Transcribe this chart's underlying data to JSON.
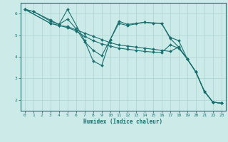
{
  "xlabel": "Humidex (Indice chaleur)",
  "bg_color": "#cceae8",
  "grid_color": "#aad4d2",
  "line_color": "#1a7070",
  "xlim": [
    -0.5,
    23.5
  ],
  "ylim": [
    1.5,
    6.5
  ],
  "yticks": [
    2,
    3,
    4,
    5,
    6
  ],
  "xticks": [
    0,
    1,
    2,
    3,
    4,
    5,
    6,
    7,
    8,
    9,
    10,
    11,
    12,
    13,
    14,
    15,
    16,
    17,
    18,
    19,
    20,
    21,
    22,
    23
  ],
  "lines": [
    {
      "x": [
        0,
        1,
        3,
        4,
        5,
        7,
        8,
        9,
        10,
        11,
        12,
        13,
        14,
        15,
        16,
        17,
        18,
        19,
        20,
        21,
        22,
        23
      ],
      "y": [
        6.2,
        6.1,
        5.7,
        5.5,
        6.2,
        4.75,
        3.8,
        3.6,
        4.8,
        5.65,
        5.5,
        5.55,
        5.6,
        5.55,
        5.55,
        4.9,
        4.75,
        3.9,
        3.3,
        2.4,
        1.9,
        1.85
      ]
    },
    {
      "x": [
        0,
        1,
        3,
        4,
        5,
        6,
        7,
        8,
        9,
        10,
        11,
        12,
        14,
        16,
        17,
        18,
        19,
        20,
        21,
        22,
        23
      ],
      "y": [
        6.2,
        6.1,
        5.65,
        5.5,
        5.75,
        5.3,
        4.7,
        4.3,
        4.05,
        4.8,
        5.55,
        5.45,
        5.6,
        5.55,
        4.85,
        4.45,
        3.9,
        3.3,
        2.4,
        1.9,
        1.85
      ]
    },
    {
      "x": [
        0,
        3,
        4,
        5,
        6,
        7,
        8,
        9,
        10,
        11,
        12,
        13,
        14,
        15,
        16,
        17,
        18,
        19,
        20,
        21,
        22,
        23
      ],
      "y": [
        6.2,
        5.55,
        5.45,
        5.35,
        5.2,
        4.95,
        4.75,
        4.6,
        4.5,
        4.4,
        4.35,
        4.3,
        4.25,
        4.22,
        4.2,
        4.55,
        4.4,
        3.9,
        3.3,
        2.4,
        1.9,
        1.85
      ]
    },
    {
      "x": [
        0,
        3,
        4,
        5,
        6,
        7,
        8,
        9,
        10,
        11,
        12,
        13,
        14,
        15,
        16,
        17,
        18,
        19,
        20,
        21,
        22,
        23
      ],
      "y": [
        6.2,
        5.55,
        5.45,
        5.4,
        5.25,
        5.1,
        4.95,
        4.8,
        4.65,
        4.55,
        4.5,
        4.45,
        4.4,
        4.35,
        4.3,
        4.25,
        4.45,
        3.9,
        3.3,
        2.4,
        1.9,
        1.85
      ]
    }
  ]
}
